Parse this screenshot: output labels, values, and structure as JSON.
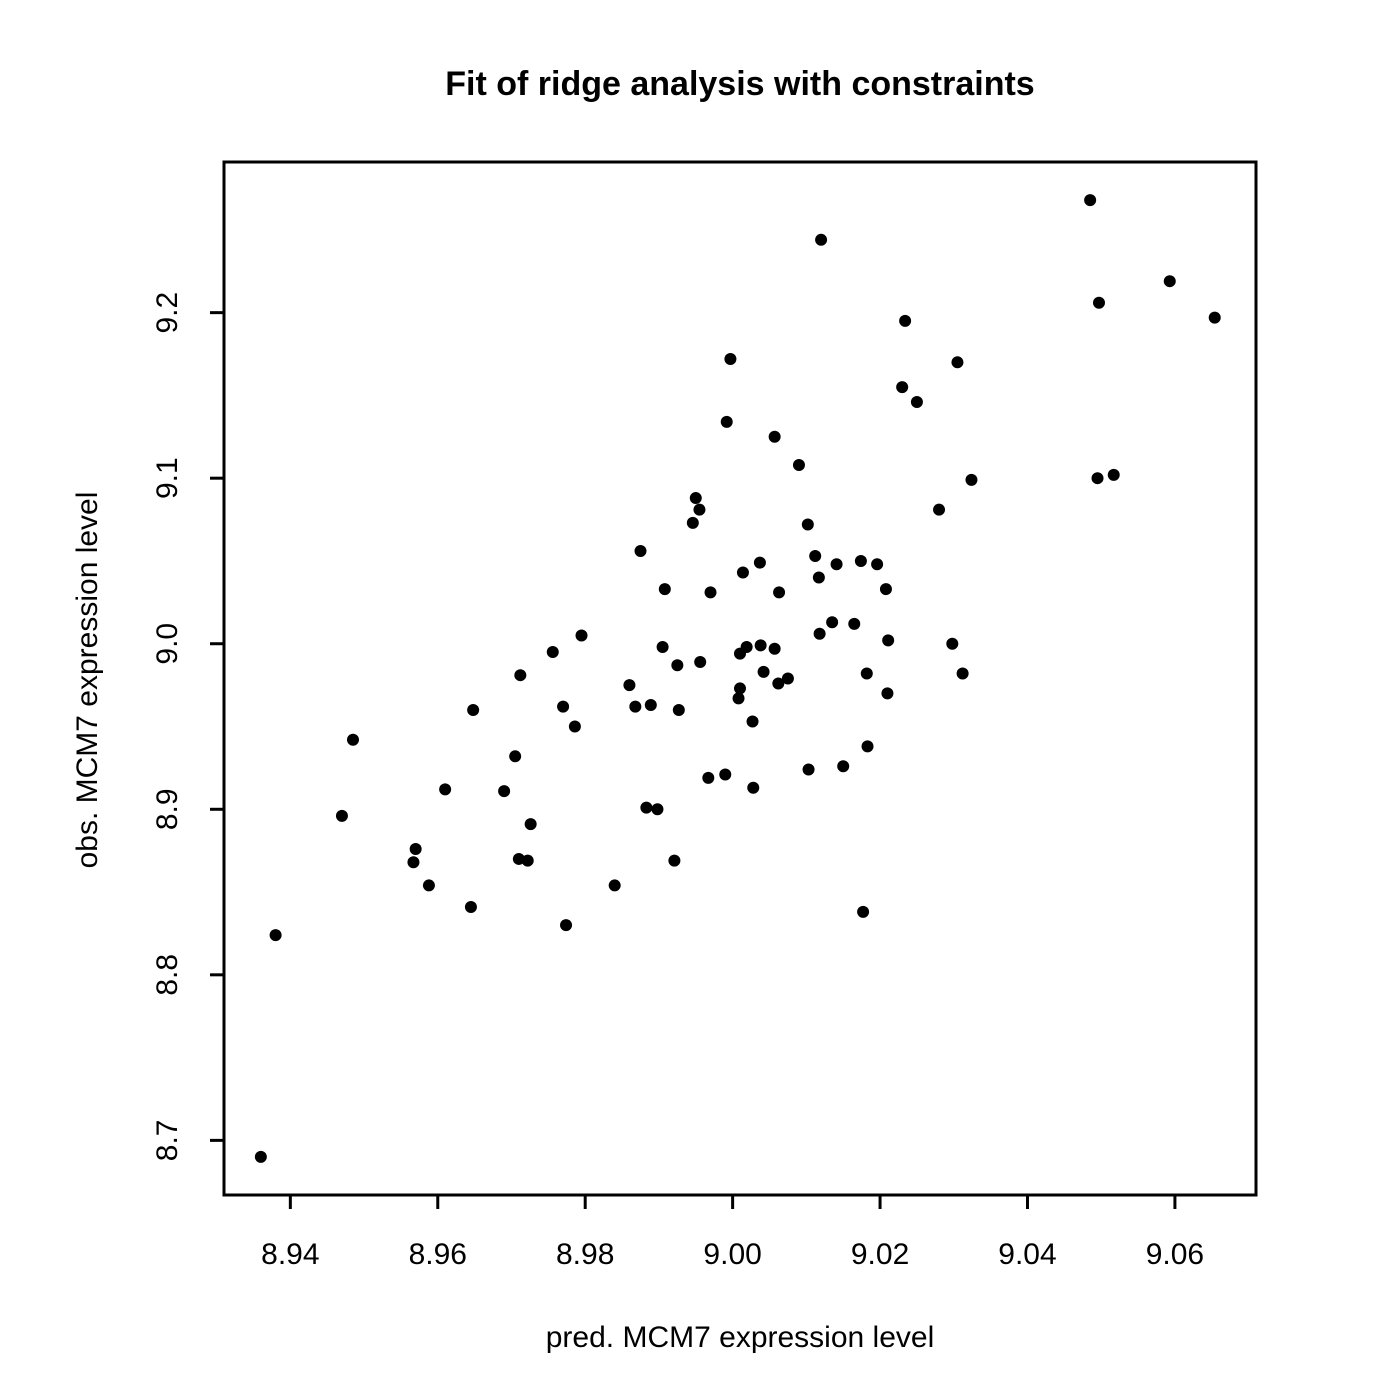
{
  "chart_data": {
    "type": "scatter",
    "title": "Fit of ridge analysis with constraints",
    "xlabel": "pred. MCM7 expression level",
    "ylabel": "obs. MCM7 expression level",
    "xlim": [
      8.931,
      9.071
    ],
    "ylim": [
      8.667,
      9.291
    ],
    "x_ticks": [
      "8.94",
      "8.96",
      "8.98",
      "9.00",
      "9.02",
      "9.04",
      "9.06"
    ],
    "y_ticks": [
      "8.7",
      "8.8",
      "8.9",
      "9.0",
      "9.1",
      "9.2"
    ],
    "grid": false,
    "point_color": "#000000",
    "points": [
      [
        8.936,
        8.69
      ],
      [
        8.938,
        8.824
      ],
      [
        8.947,
        8.896
      ],
      [
        8.9485,
        8.942
      ],
      [
        8.9567,
        8.868
      ],
      [
        8.957,
        8.876
      ],
      [
        8.9588,
        8.854
      ],
      [
        8.961,
        8.912
      ],
      [
        8.9645,
        8.841
      ],
      [
        8.9648,
        8.96
      ],
      [
        8.969,
        8.911
      ],
      [
        8.9705,
        8.932
      ],
      [
        8.971,
        8.87
      ],
      [
        8.9712,
        8.981
      ],
      [
        8.9722,
        8.869
      ],
      [
        8.9726,
        8.891
      ],
      [
        8.9756,
        8.995
      ],
      [
        8.977,
        8.962
      ],
      [
        8.9774,
        8.83
      ],
      [
        8.9786,
        8.95
      ],
      [
        8.9795,
        9.005
      ],
      [
        8.984,
        8.854
      ],
      [
        8.986,
        8.975
      ],
      [
        8.9868,
        8.962
      ],
      [
        8.9875,
        9.056
      ],
      [
        8.9883,
        8.901
      ],
      [
        8.9889,
        8.963
      ],
      [
        8.9898,
        8.9
      ],
      [
        8.9905,
        8.998
      ],
      [
        8.9908,
        9.033
      ],
      [
        8.9921,
        8.869
      ],
      [
        8.9925,
        8.987
      ],
      [
        8.9927,
        8.96
      ],
      [
        8.9946,
        9.073
      ],
      [
        8.995,
        9.088
      ],
      [
        8.9955,
        9.081
      ],
      [
        8.9956,
        8.989
      ],
      [
        8.9967,
        8.919
      ],
      [
        8.997,
        9.031
      ],
      [
        8.999,
        8.921
      ],
      [
        8.9992,
        9.134
      ],
      [
        8.9997,
        9.172
      ],
      [
        9.0008,
        8.967
      ],
      [
        9.001,
        8.973
      ],
      [
        9.001,
        8.994
      ],
      [
        9.0014,
        9.043
      ],
      [
        9.0019,
        8.998
      ],
      [
        9.0027,
        8.953
      ],
      [
        9.0028,
        8.913
      ],
      [
        9.0037,
        9.049
      ],
      [
        9.0038,
        8.999
      ],
      [
        9.0042,
        8.983
      ],
      [
        9.0057,
        8.997
      ],
      [
        9.0057,
        9.125
      ],
      [
        9.0062,
        8.976
      ],
      [
        9.0063,
        9.031
      ],
      [
        9.0075,
        8.979
      ],
      [
        9.009,
        9.108
      ],
      [
        9.0102,
        9.072
      ],
      [
        9.0103,
        8.924
      ],
      [
        9.0112,
        9.053
      ],
      [
        9.0117,
        9.04
      ],
      [
        9.0118,
        9.006
      ],
      [
        9.012,
        9.244
      ],
      [
        9.0135,
        9.013
      ],
      [
        9.0141,
        9.048
      ],
      [
        9.015,
        8.926
      ],
      [
        9.0165,
        9.012
      ],
      [
        9.0174,
        9.05
      ],
      [
        9.0177,
        8.838
      ],
      [
        9.0182,
        8.982
      ],
      [
        9.0183,
        8.938
      ],
      [
        9.0196,
        9.048
      ],
      [
        9.0208,
        9.033
      ],
      [
        9.021,
        8.97
      ],
      [
        9.0211,
        9.002
      ],
      [
        9.023,
        9.155
      ],
      [
        9.0234,
        9.195
      ],
      [
        9.025,
        9.146
      ],
      [
        9.028,
        9.081
      ],
      [
        9.0298,
        9.0
      ],
      [
        9.0305,
        9.17
      ],
      [
        9.0312,
        8.982
      ],
      [
        9.0324,
        9.099
      ],
      [
        9.0485,
        9.268
      ],
      [
        9.0495,
        9.1
      ],
      [
        9.0497,
        9.206
      ],
      [
        9.0517,
        9.102
      ],
      [
        9.0593,
        9.219
      ],
      [
        9.0654,
        9.197
      ]
    ]
  }
}
